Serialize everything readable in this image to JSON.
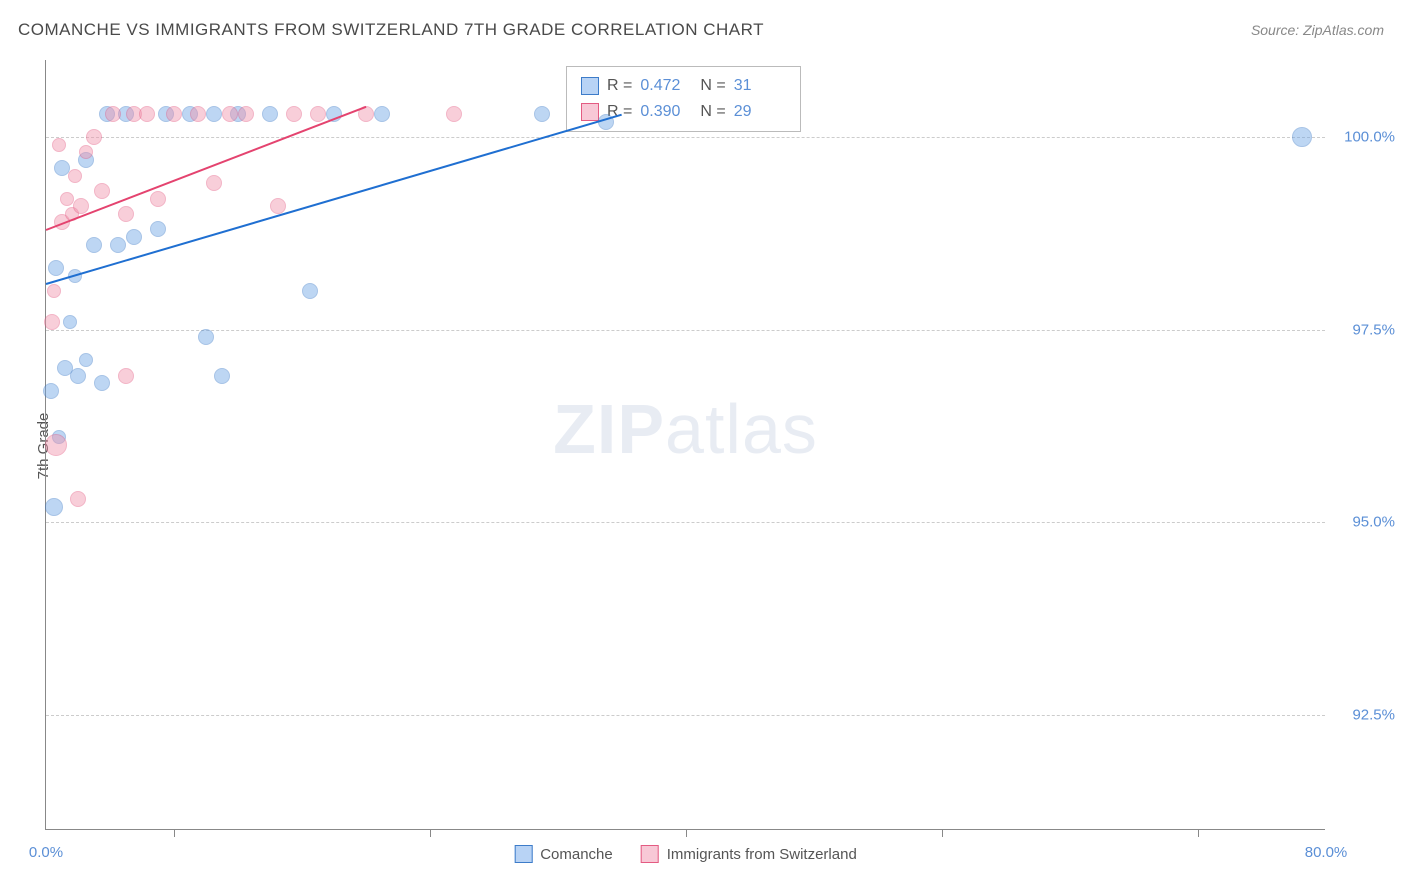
{
  "title": "COMANCHE VS IMMIGRANTS FROM SWITZERLAND 7TH GRADE CORRELATION CHART",
  "source": "Source: ZipAtlas.com",
  "ylabel": "7th Grade",
  "watermark_bold": "ZIP",
  "watermark_light": "atlas",
  "chart": {
    "type": "scatter",
    "xlim": [
      0,
      80
    ],
    "ylim": [
      91,
      101
    ],
    "xtick_labels": [
      "0.0%",
      "80.0%"
    ],
    "xtick_positions": [
      0,
      80
    ],
    "xtick_minor": [
      8,
      24,
      40,
      56,
      72
    ],
    "ytick_labels": [
      "92.5%",
      "95.0%",
      "97.5%",
      "100.0%"
    ],
    "ytick_positions": [
      92.5,
      95.0,
      97.5,
      100.0
    ],
    "grid_color": "#cccccc",
    "axis_color": "#888888",
    "background_color": "#ffffff",
    "text_color": "#555555",
    "tick_label_color": "#5b8fd6",
    "marker_radius": 8,
    "marker_opacity": 0.45,
    "series": [
      {
        "name": "Comanche",
        "fill_color": "#6fa5e6",
        "stroke_color": "#3d7cc9",
        "trend_color": "#1f6fd1",
        "R": "0.472",
        "N": "31",
        "trend": {
          "x1": 0,
          "y1": 98.1,
          "x2": 36,
          "y2": 100.3
        },
        "points": [
          {
            "x": 0.5,
            "y": 95.2,
            "r": 9
          },
          {
            "x": 0.8,
            "y": 96.1,
            "r": 7
          },
          {
            "x": 0.3,
            "y": 96.7,
            "r": 8
          },
          {
            "x": 1.2,
            "y": 97.0,
            "r": 8
          },
          {
            "x": 2.0,
            "y": 96.9,
            "r": 8
          },
          {
            "x": 2.5,
            "y": 97.1,
            "r": 7
          },
          {
            "x": 3.5,
            "y": 96.8,
            "r": 8
          },
          {
            "x": 1.5,
            "y": 97.6,
            "r": 7
          },
          {
            "x": 0.6,
            "y": 98.3,
            "r": 8
          },
          {
            "x": 1.8,
            "y": 98.2,
            "r": 7
          },
          {
            "x": 3.0,
            "y": 98.6,
            "r": 8
          },
          {
            "x": 4.5,
            "y": 98.6,
            "r": 8
          },
          {
            "x": 5.5,
            "y": 98.7,
            "r": 8
          },
          {
            "x": 7.0,
            "y": 98.8,
            "r": 8
          },
          {
            "x": 10.0,
            "y": 97.4,
            "r": 8
          },
          {
            "x": 11.0,
            "y": 96.9,
            "r": 8
          },
          {
            "x": 16.5,
            "y": 98.0,
            "r": 8
          },
          {
            "x": 1.0,
            "y": 99.6,
            "r": 8
          },
          {
            "x": 2.5,
            "y": 99.7,
            "r": 8
          },
          {
            "x": 3.8,
            "y": 100.3,
            "r": 8
          },
          {
            "x": 5.0,
            "y": 100.3,
            "r": 8
          },
          {
            "x": 7.5,
            "y": 100.3,
            "r": 8
          },
          {
            "x": 9.0,
            "y": 100.3,
            "r": 8
          },
          {
            "x": 10.5,
            "y": 100.3,
            "r": 8
          },
          {
            "x": 12.0,
            "y": 100.3,
            "r": 8
          },
          {
            "x": 14.0,
            "y": 100.3,
            "r": 8
          },
          {
            "x": 18.0,
            "y": 100.3,
            "r": 8
          },
          {
            "x": 21.0,
            "y": 100.3,
            "r": 8
          },
          {
            "x": 31.0,
            "y": 100.3,
            "r": 8
          },
          {
            "x": 35.0,
            "y": 100.2,
            "r": 8
          },
          {
            "x": 78.5,
            "y": 100.0,
            "r": 10
          }
        ]
      },
      {
        "name": "Immigants from Switzerland",
        "display_name": "Immigrants from Switzerland",
        "fill_color": "#f193ac",
        "stroke_color": "#e45b82",
        "trend_color": "#e4436f",
        "R": "0.390",
        "N": "29",
        "trend": {
          "x1": 0,
          "y1": 98.8,
          "x2": 20,
          "y2": 100.4
        },
        "points": [
          {
            "x": 0.6,
            "y": 96.0,
            "r": 11
          },
          {
            "x": 0.4,
            "y": 97.6,
            "r": 8
          },
          {
            "x": 0.5,
            "y": 98.0,
            "r": 7
          },
          {
            "x": 1.0,
            "y": 98.9,
            "r": 8
          },
          {
            "x": 1.3,
            "y": 99.2,
            "r": 7
          },
          {
            "x": 1.6,
            "y": 99.0,
            "r": 7
          },
          {
            "x": 1.8,
            "y": 99.5,
            "r": 7
          },
          {
            "x": 2.2,
            "y": 99.1,
            "r": 8
          },
          {
            "x": 2.5,
            "y": 99.8,
            "r": 7
          },
          {
            "x": 3.0,
            "y": 100.0,
            "r": 8
          },
          {
            "x": 3.5,
            "y": 99.3,
            "r": 8
          },
          {
            "x": 4.2,
            "y": 100.3,
            "r": 8
          },
          {
            "x": 5.0,
            "y": 99.0,
            "r": 8
          },
          {
            "x": 5.0,
            "y": 96.9,
            "r": 8
          },
          {
            "x": 5.5,
            "y": 100.3,
            "r": 8
          },
          {
            "x": 6.3,
            "y": 100.3,
            "r": 8
          },
          {
            "x": 7.0,
            "y": 99.2,
            "r": 8
          },
          {
            "x": 8.0,
            "y": 100.3,
            "r": 8
          },
          {
            "x": 9.5,
            "y": 100.3,
            "r": 8
          },
          {
            "x": 10.5,
            "y": 99.4,
            "r": 8
          },
          {
            "x": 11.5,
            "y": 100.3,
            "r": 8
          },
          {
            "x": 12.5,
            "y": 100.3,
            "r": 8
          },
          {
            "x": 14.5,
            "y": 99.1,
            "r": 8
          },
          {
            "x": 15.5,
            "y": 100.3,
            "r": 8
          },
          {
            "x": 17.0,
            "y": 100.3,
            "r": 8
          },
          {
            "x": 20.0,
            "y": 100.3,
            "r": 8
          },
          {
            "x": 25.5,
            "y": 100.3,
            "r": 8
          },
          {
            "x": 2.0,
            "y": 95.3,
            "r": 8
          },
          {
            "x": 0.8,
            "y": 99.9,
            "r": 7
          }
        ]
      }
    ]
  },
  "stats_box": {
    "rows": [
      {
        "swatch_fill": "#b8d3f5",
        "swatch_stroke": "#3d7cc9",
        "R": "0.472",
        "N": "31"
      },
      {
        "swatch_fill": "#f8c8d6",
        "swatch_stroke": "#e45b82",
        "R": "0.390",
        "N": "29"
      }
    ]
  },
  "legend": {
    "items": [
      {
        "label": "Comanche",
        "fill": "#b8d3f5",
        "stroke": "#3d7cc9"
      },
      {
        "label": "Immigrants from Switzerland",
        "fill": "#f8c8d6",
        "stroke": "#e45b82"
      }
    ]
  }
}
